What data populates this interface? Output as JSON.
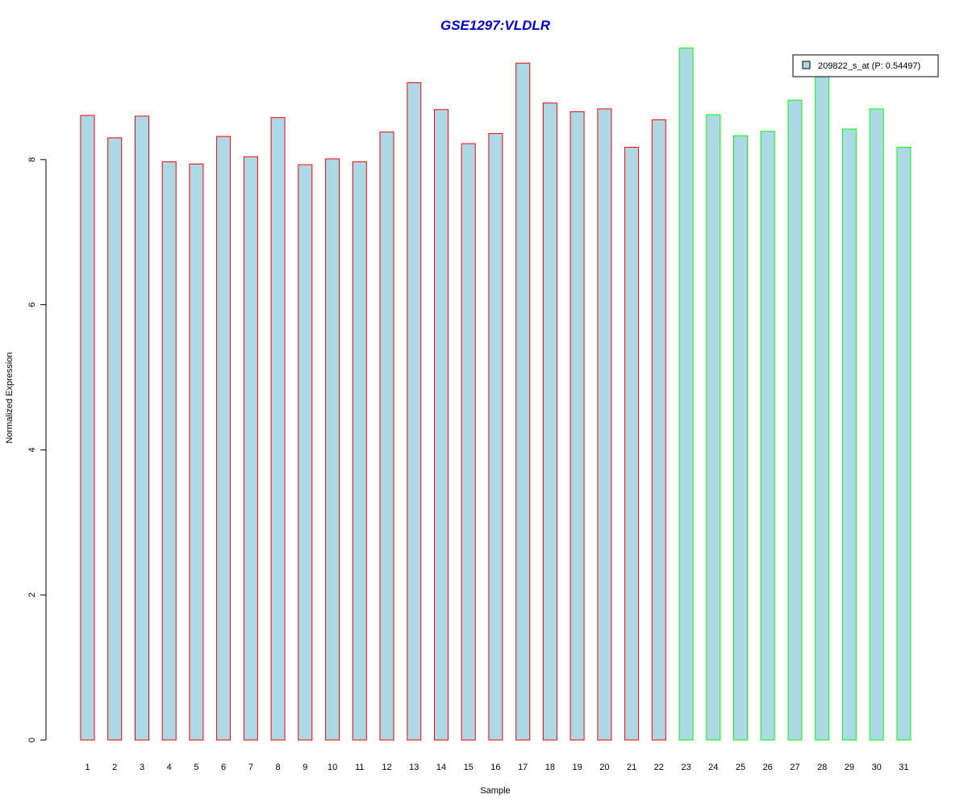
{
  "chart_data": {
    "type": "bar",
    "title": "GSE1297:VLDLR",
    "xlabel": "Sample",
    "ylabel": "Normalized Expression",
    "ylim": [
      0,
      9.6
    ],
    "yticks": [
      0,
      2,
      4,
      6,
      8
    ],
    "categories": [
      "1",
      "2",
      "3",
      "4",
      "5",
      "6",
      "7",
      "8",
      "9",
      "10",
      "11",
      "12",
      "13",
      "14",
      "15",
      "16",
      "17",
      "18",
      "19",
      "20",
      "21",
      "22",
      "23",
      "24",
      "25",
      "26",
      "27",
      "28",
      "29",
      "30",
      "31"
    ],
    "series": [
      {
        "name": "209822_s_at (P: 0.54497)",
        "values": [
          8.61,
          8.3,
          8.6,
          7.97,
          7.94,
          8.32,
          8.04,
          8.58,
          7.93,
          8.01,
          7.97,
          8.38,
          9.06,
          8.69,
          8.22,
          8.36,
          9.33,
          8.78,
          8.66,
          8.7,
          8.17,
          8.55,
          9.54,
          8.62,
          8.33,
          8.39,
          8.82,
          9.15,
          8.42,
          8.7,
          8.17
        ]
      }
    ],
    "group_sizes": [
      22,
      9
    ],
    "colors": {
      "bar_fill": "#add8e6",
      "group1_border": "#ff0000",
      "group2_border": "#00ff00",
      "title": "#0000cd",
      "axis": "#000000"
    },
    "grid": false,
    "legend_position": "top-right"
  }
}
